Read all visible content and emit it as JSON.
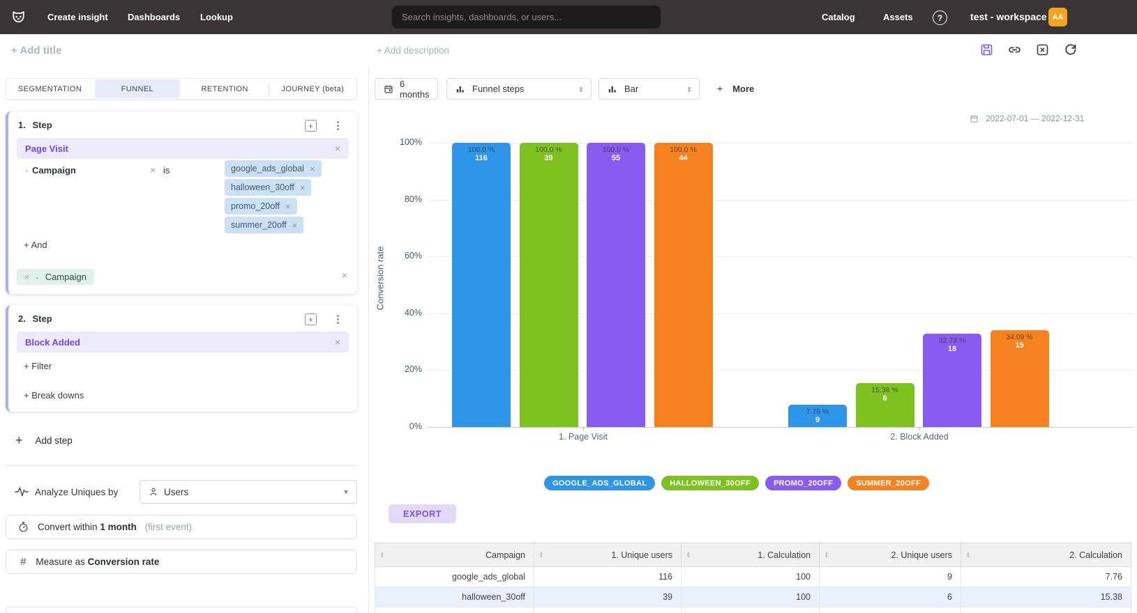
{
  "glyphs": {
    "plus": "+",
    "close": "×",
    "kebab": "⋮",
    "caret_down": "▾",
    "caret_up": "▴",
    "bullet": "·",
    "question": "?",
    "hash": "#"
  },
  "nav": {
    "items": [
      "Create insight",
      "Dashboards",
      "Lookup"
    ],
    "search_placeholder": "Search insights, dashboards, or users...",
    "right_items": [
      "Catalog",
      "Assets"
    ],
    "workspace": "test - workspace",
    "avatar_initials": "AA"
  },
  "titlebar": {
    "add_title": "+ Add title",
    "add_description": "+ Add description"
  },
  "panel": {
    "tabs": [
      {
        "label": "SEGMENTATION",
        "active": false
      },
      {
        "label": "FUNNEL",
        "active": true
      },
      {
        "label": "RETENTION",
        "active": false
      },
      {
        "label": "JOURNEY (beta)",
        "active": false
      }
    ],
    "steps": [
      {
        "number": "1.",
        "label": "Step",
        "event": "Page Visit",
        "filter": {
          "property": "Campaign",
          "operator": "is",
          "values": [
            "google_ads_global",
            "halloween_30off",
            "promo_20off",
            "summer_20off"
          ]
        },
        "and_label": "+ And",
        "pending_filter": "Campaign"
      },
      {
        "number": "2.",
        "label": "Step",
        "event": "Block Added",
        "filter_label": "+ Filter",
        "breakdown_label": "+ Break downs"
      }
    ],
    "add_step_label": "Add step",
    "analyze": {
      "label": "Analyze Uniques by",
      "value": "Users"
    },
    "convert": {
      "prefix": "Convert within",
      "value": "1 month",
      "suffix": "(first event)"
    },
    "measure": {
      "prefix": "Measure as",
      "value": "Conversion rate"
    }
  },
  "main": {
    "date_button": "6 months",
    "view_select": "Funnel steps",
    "chart_select": "Bar",
    "more_label": "More",
    "date_range": "2022-07-01 — 2022-12-31",
    "export_label": "EXPORT"
  },
  "chart_data": {
    "type": "bar",
    "title": "",
    "ylabel": "Conversion rate",
    "ylim": [
      0,
      100
    ],
    "yticks": [
      "100%",
      "80%",
      "60%",
      "40%",
      "20%",
      "0%"
    ],
    "grid": true,
    "legend_position": "bottom",
    "categories": [
      "1. Page Visit",
      "2. Block Added"
    ],
    "series": [
      {
        "name": "GOOGLE_ADS_GLOBAL",
        "color": "#2d96e8",
        "values": [
          100,
          7.76
        ],
        "value_labels": [
          "100.0 %",
          "7.76 %"
        ],
        "counts": [
          "116",
          "9"
        ]
      },
      {
        "name": "HALLOWEEN_30OFF",
        "color": "#7ec21f",
        "values": [
          100,
          15.38
        ],
        "value_labels": [
          "100.0 %",
          "15.38 %"
        ],
        "counts": [
          "39",
          "6"
        ]
      },
      {
        "name": "PROMO_20OFF",
        "color": "#8a5bf0",
        "values": [
          100,
          32.73
        ],
        "value_labels": [
          "100.0 %",
          "32.73 %"
        ],
        "counts": [
          "55",
          "18"
        ]
      },
      {
        "name": "SUMMER_20OFF",
        "color": "#f6821f",
        "values": [
          100,
          34.09
        ],
        "value_labels": [
          "100.0 %",
          "34.09 %"
        ],
        "counts": [
          "44",
          "15"
        ]
      }
    ]
  },
  "table": {
    "headers": [
      "Campaign",
      "1. Unique users",
      "1. Calculation",
      "2. Unique users",
      "2. Calculation"
    ],
    "rows": [
      [
        "google_ads_global",
        "116",
        "100",
        "9",
        "7.76"
      ],
      [
        "halloween_30off",
        "39",
        "100",
        "6",
        "15.38"
      ]
    ],
    "highlighted_row_index": 1
  }
}
